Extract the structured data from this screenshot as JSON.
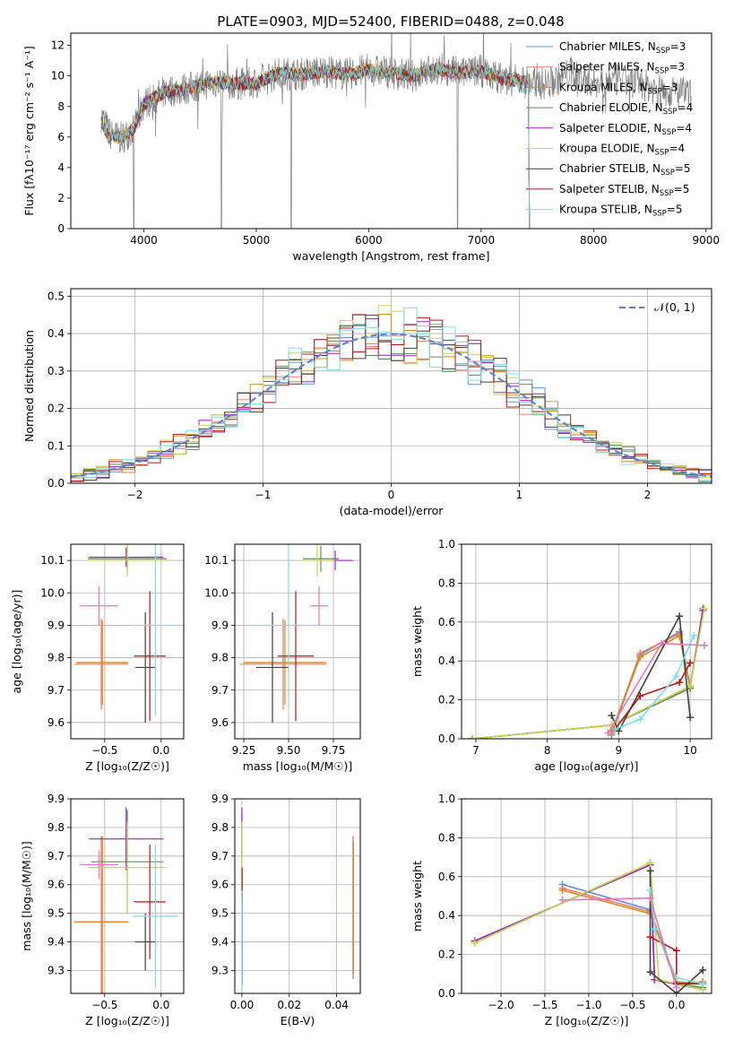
{
  "title": "PLATE=0903, MJD=52400, FIBERID=0488, z=0.048",
  "legend_entries": [
    {
      "name": "Chabrier MILES, N",
      "sub": "SSP",
      "suffix": "=3",
      "color": "#6a8fd8"
    },
    {
      "name": "Salpeter MILES, N",
      "sub": "SSP",
      "suffix": "=3",
      "color": "#e8836b"
    },
    {
      "name": "Kroupa MILES, N",
      "sub": "SSP",
      "suffix": "=3",
      "color": "#d98a1f"
    },
    {
      "name": "Chabrier ELODIE, N",
      "sub": "SSP",
      "suffix": "=4",
      "color": "#5b8f5b"
    },
    {
      "name": "Salpeter ELODIE, N",
      "sub": "SSP",
      "suffix": "=4",
      "color": "#a020c0"
    },
    {
      "name": "Kroupa ELODIE, N",
      "sub": "SSP",
      "suffix": "=4",
      "color": "#c8d84a"
    },
    {
      "name": "Chabrier STELIB, N",
      "sub": "SSP",
      "suffix": "=5",
      "color": "#404040"
    },
    {
      "name": "Salpeter STELIB, N",
      "sub": "SSP",
      "suffix": "=5",
      "color": "#b01818"
    },
    {
      "name": "Kroupa STELIB, N",
      "sub": "SSP",
      "suffix": "=5",
      "color": "#7fdde0"
    }
  ],
  "chart_data": [
    {
      "id": "spectrum",
      "type": "line",
      "xlabel": "wavelength [Angstrom, rest frame]",
      "ylabel": "Flux [fλ10⁻¹⁷ erg cm⁻² s⁻¹ A⁻¹]",
      "xlim": [
        3350,
        9050
      ],
      "ylim": [
        0,
        12.8
      ],
      "xticks": [
        4000,
        5000,
        6000,
        7000,
        8000,
        9000
      ],
      "yticks": [
        0,
        2,
        4,
        6,
        8,
        10,
        12
      ],
      "data_color": "#808080",
      "models_end": 7420,
      "shape_points": [
        [
          3620,
          7.4
        ],
        [
          3700,
          6.2
        ],
        [
          3800,
          5.9
        ],
        [
          3900,
          6.5
        ],
        [
          3960,
          7.4
        ],
        [
          4000,
          8.2
        ],
        [
          4100,
          8.6
        ],
        [
          4200,
          9.0
        ],
        [
          4400,
          9.2
        ],
        [
          4600,
          9.6
        ],
        [
          4800,
          9.5
        ],
        [
          5000,
          9.5
        ],
        [
          5200,
          10.2
        ],
        [
          5400,
          10.1
        ],
        [
          5600,
          10.3
        ],
        [
          5800,
          10.1
        ],
        [
          6000,
          10.4
        ],
        [
          6200,
          10.2
        ],
        [
          6400,
          10.0
        ],
        [
          6600,
          10.5
        ],
        [
          6800,
          10.2
        ],
        [
          7000,
          10.3
        ],
        [
          7200,
          9.8
        ],
        [
          7400,
          9.6
        ],
        [
          7600,
          9.5
        ],
        [
          7800,
          10.2
        ],
        [
          8000,
          9.6
        ],
        [
          8200,
          9.7
        ],
        [
          8400,
          9.6
        ],
        [
          8600,
          9.0
        ],
        [
          8800,
          8.9
        ],
        [
          8870,
          8.7
        ]
      ],
      "dips": [
        3910,
        4690,
        5310,
        6790
      ]
    },
    {
      "id": "residuals",
      "type": "histogram",
      "xlabel": "(data-model)/error",
      "ylabel": "Normed distribution",
      "xlim": [
        -2.5,
        2.5
      ],
      "ylim": [
        0,
        0.52
      ],
      "xticks": [
        -2,
        -1,
        0,
        1,
        2
      ],
      "yticks": [
        0.0,
        0.1,
        0.2,
        0.3,
        0.4,
        0.5
      ],
      "bin_width": 0.1,
      "gauss_label": "𝒩(0, 1)",
      "gauss_color": "#5b86d6"
    },
    {
      "id": "z_age",
      "type": "errorbar",
      "xlabel": "Z [log₁₀(Z/Z☉)]",
      "ylabel": "age  [log₁₀(age/yr)]",
      "xlim": [
        -0.8,
        0.2
      ],
      "ylim": [
        9.55,
        10.15
      ],
      "xticks": [
        -0.5,
        0.0
      ],
      "yticks": [
        9.6,
        9.7,
        9.8,
        9.9,
        10.0,
        10.1
      ],
      "points": [
        {
          "x": -0.53,
          "y": 9.785,
          "xe": 0.22,
          "ye": 0.13,
          "c": "#6a8fd8"
        },
        {
          "x": -0.53,
          "y": 9.78,
          "xe": 0.24,
          "ye": 0.14,
          "c": "#e8836b"
        },
        {
          "x": -0.52,
          "y": 9.785,
          "xe": 0.23,
          "ye": 0.13,
          "c": "#d98a1f"
        },
        {
          "x": -0.3,
          "y": 10.105,
          "xe": 0.35,
          "ye": 0.04,
          "c": "#5b8f5b"
        },
        {
          "x": -0.31,
          "y": 10.11,
          "xe": 0.33,
          "ye": 0.03,
          "c": "#a020c0"
        },
        {
          "x": -0.3,
          "y": 10.1,
          "xe": 0.34,
          "ye": 0.05,
          "c": "#c8d84a"
        },
        {
          "x": -0.14,
          "y": 9.77,
          "xe": 0.09,
          "ye": 0.17,
          "c": "#404040"
        },
        {
          "x": -0.1,
          "y": 9.805,
          "xe": 0.14,
          "ye": 0.2,
          "c": "#b01818"
        },
        {
          "x": -0.05,
          "y": 9.9,
          "xe": 0.2,
          "ye": 0.28,
          "c": "#7fdde0"
        },
        {
          "x": -0.55,
          "y": 9.96,
          "xe": 0.17,
          "ye": 0.06,
          "c": "#e377c2"
        }
      ]
    },
    {
      "id": "mass_age",
      "type": "errorbar",
      "xlabel": "mass [log₁₀(M/M☉)]",
      "ylabel": "",
      "xlim": [
        9.2,
        9.9
      ],
      "ylim": [
        9.55,
        10.15
      ],
      "xticks": [
        9.25,
        9.5,
        9.75
      ],
      "yticks": [
        9.6,
        9.7,
        9.8,
        9.9,
        10.0,
        10.1
      ],
      "points": [
        {
          "x": 9.47,
          "y": 9.785,
          "xe": 0.22,
          "ye": 0.13,
          "c": "#6a8fd8"
        },
        {
          "x": 9.47,
          "y": 9.78,
          "xe": 0.24,
          "ye": 0.14,
          "c": "#e8836b"
        },
        {
          "x": 9.48,
          "y": 9.785,
          "xe": 0.23,
          "ye": 0.13,
          "c": "#d98a1f"
        },
        {
          "x": 9.68,
          "y": 10.105,
          "xe": 0.1,
          "ye": 0.04,
          "c": "#5b8f5b"
        },
        {
          "x": 9.76,
          "y": 10.1,
          "xe": 0.1,
          "ye": 0.03,
          "c": "#a020c0"
        },
        {
          "x": 9.66,
          "y": 10.1,
          "xe": 0.1,
          "ye": 0.05,
          "c": "#c8d84a"
        },
        {
          "x": 9.41,
          "y": 9.77,
          "xe": 0.09,
          "ye": 0.17,
          "c": "#404040"
        },
        {
          "x": 9.54,
          "y": 9.805,
          "xe": 0.1,
          "ye": 0.2,
          "c": "#b01818"
        },
        {
          "x": 9.5,
          "y": 9.9,
          "xe": 0.22,
          "ye": 0.25,
          "c": "#7fdde0"
        },
        {
          "x": 9.67,
          "y": 9.96,
          "xe": 0.05,
          "ye": 0.06,
          "c": "#e377c2"
        }
      ]
    },
    {
      "id": "age_weight",
      "type": "line",
      "xlabel": "age  [log₁₀(age/yr)]",
      "ylabel": "mass weight",
      "xlim": [
        6.8,
        10.3
      ],
      "ylim": [
        0,
        1.0
      ],
      "xticks": [
        7,
        8,
        9,
        10
      ],
      "yticks": [
        0.0,
        0.2,
        0.4,
        0.6,
        0.8,
        1.0
      ],
      "series": [
        {
          "c": "#6a8fd8",
          "pts": [
            [
              8.9,
              0.02
            ],
            [
              9.3,
              0.43
            ],
            [
              9.85,
              0.55
            ],
            [
              10.0,
              0.27
            ]
          ]
        },
        {
          "c": "#e8836b",
          "pts": [
            [
              8.9,
              0.03
            ],
            [
              9.3,
              0.44
            ],
            [
              9.85,
              0.54
            ],
            [
              10.0,
              0.26
            ]
          ]
        },
        {
          "c": "#d98a1f",
          "pts": [
            [
              8.9,
              0.04
            ],
            [
              9.3,
              0.42
            ],
            [
              9.85,
              0.53
            ],
            [
              10.0,
              0.26
            ]
          ]
        },
        {
          "c": "#5b8f5b",
          "pts": [
            [
              6.95,
              0.0
            ],
            [
              8.9,
              0.07
            ],
            [
              10.0,
              0.26
            ],
            [
              10.18,
              0.67
            ]
          ]
        },
        {
          "c": "#a020c0",
          "pts": [
            [
              6.95,
              0.0
            ],
            [
              8.9,
              0.07
            ],
            [
              10.0,
              0.27
            ],
            [
              10.18,
              0.66
            ]
          ]
        },
        {
          "c": "#c8d84a",
          "pts": [
            [
              6.95,
              0.0
            ],
            [
              8.9,
              0.07
            ],
            [
              10.0,
              0.27
            ],
            [
              10.2,
              0.67
            ]
          ]
        },
        {
          "c": "#404040",
          "pts": [
            [
              8.9,
              0.12
            ],
            [
              9.0,
              0.04
            ],
            [
              9.85,
              0.63
            ],
            [
              10.0,
              0.11
            ]
          ]
        },
        {
          "c": "#b01818",
          "pts": [
            [
              8.95,
              0.05
            ],
            [
              9.3,
              0.22
            ],
            [
              9.85,
              0.29
            ],
            [
              10.0,
              0.39
            ]
          ]
        },
        {
          "c": "#7fdde0",
          "pts": [
            [
              8.95,
              0.05
            ],
            [
              9.3,
              0.1
            ],
            [
              9.8,
              0.32
            ],
            [
              10.05,
              0.53
            ]
          ]
        },
        {
          "c": "#e377c2",
          "pts": [
            [
              8.85,
              0.03
            ],
            [
              9.6,
              0.49
            ],
            [
              10.2,
              0.48
            ]
          ]
        }
      ]
    },
    {
      "id": "z_mass",
      "type": "errorbar",
      "xlabel": "Z [log₁₀(Z/Z☉)]",
      "ylabel": "mass [log₁₀(M/M☉)]",
      "xlim": [
        -0.8,
        0.2
      ],
      "ylim": [
        9.22,
        9.9
      ],
      "xticks": [
        -0.5,
        0.0
      ],
      "yticks": [
        9.3,
        9.4,
        9.5,
        9.6,
        9.7,
        9.8,
        9.9
      ],
      "points": [
        {
          "x": -0.53,
          "y": 9.47,
          "xe": 0.22,
          "ye": 0.3,
          "c": "#6a8fd8"
        },
        {
          "x": -0.53,
          "y": 9.47,
          "xe": 0.24,
          "ye": 0.3,
          "c": "#e8836b"
        },
        {
          "x": -0.52,
          "y": 9.47,
          "xe": 0.23,
          "ye": 0.3,
          "c": "#d98a1f"
        },
        {
          "x": -0.3,
          "y": 9.68,
          "xe": 0.32,
          "ye": 0.18,
          "c": "#5b8f5b"
        },
        {
          "x": -0.31,
          "y": 9.76,
          "xe": 0.33,
          "ye": 0.11,
          "c": "#a020c0"
        },
        {
          "x": -0.3,
          "y": 9.66,
          "xe": 0.34,
          "ye": 0.16,
          "c": "#c8d84a"
        },
        {
          "x": -0.14,
          "y": 9.4,
          "xe": 0.09,
          "ye": 0.1,
          "c": "#404040"
        },
        {
          "x": -0.1,
          "y": 9.54,
          "xe": 0.14,
          "ye": 0.2,
          "c": "#b01818"
        },
        {
          "x": -0.05,
          "y": 9.49,
          "xe": 0.2,
          "ye": 0.25,
          "c": "#7fdde0"
        },
        {
          "x": -0.55,
          "y": 9.67,
          "xe": 0.17,
          "ye": 0.05,
          "c": "#e377c2"
        }
      ]
    },
    {
      "id": "ebv_mass",
      "type": "errorbar",
      "xlabel": "E(B-V)",
      "ylabel": "",
      "xlim": [
        -0.003,
        0.05
      ],
      "ylim": [
        9.22,
        9.9
      ],
      "xticks": [
        0.0,
        0.02,
        0.04
      ],
      "yticks": [
        9.3,
        9.4,
        9.5,
        9.6,
        9.7,
        9.8,
        9.9
      ],
      "points": [
        {
          "x": 0.047,
          "y": 9.52,
          "xe": 0,
          "ye": 0.25,
          "c": "#6a8fd8"
        },
        {
          "x": 0.0469,
          "y": 9.52,
          "xe": 0,
          "ye": 0.24,
          "c": "#e8836b"
        },
        {
          "x": 0.0471,
          "y": 9.52,
          "xe": 0,
          "ye": 0.23,
          "c": "#d98a1f"
        },
        {
          "x": 0.0,
          "y": 9.7,
          "xe": 0,
          "ye": 0.15,
          "c": "#5b8f5b"
        },
        {
          "x": 0.0,
          "y": 9.78,
          "xe": 0,
          "ye": 0.09,
          "c": "#a020c0"
        },
        {
          "x": 0.0,
          "y": 9.7,
          "xe": 0,
          "ye": 0.12,
          "c": "#c8d84a"
        },
        {
          "x": 0.0001,
          "y": 9.4,
          "xe": 0,
          "ye": 0.15,
          "c": "#404040"
        },
        {
          "x": 0.0001,
          "y": 9.6,
          "xe": 0,
          "ye": 0.06,
          "c": "#b01818"
        },
        {
          "x": 0.0,
          "y": 9.4,
          "xe": 0,
          "ye": 0.18,
          "c": "#7fdde0"
        }
      ]
    },
    {
      "id": "z_weight",
      "type": "line",
      "xlabel": "Z [log₁₀(Z/Z☉)]",
      "ylabel": "mass weight",
      "xlim": [
        -2.45,
        0.4
      ],
      "ylim": [
        0,
        1.0
      ],
      "xticks": [
        -2.0,
        -1.5,
        -1.0,
        -0.5,
        0.0
      ],
      "yticks": [
        0.0,
        0.2,
        0.4,
        0.6,
        0.8,
        1.0
      ],
      "series": [
        {
          "c": "#6a8fd8",
          "pts": [
            [
              -1.3,
              0.56
            ],
            [
              -0.3,
              0.43
            ],
            [
              0.0,
              0.05
            ],
            [
              0.3,
              0.05
            ]
          ]
        },
        {
          "c": "#e8836b",
          "pts": [
            [
              -1.3,
              0.54
            ],
            [
              -0.3,
              0.42
            ],
            [
              0.0,
              0.06
            ],
            [
              0.3,
              0.05
            ]
          ]
        },
        {
          "c": "#d98a1f",
          "pts": [
            [
              -1.3,
              0.53
            ],
            [
              -0.3,
              0.41
            ],
            [
              0.0,
              0.05
            ],
            [
              0.3,
              0.06
            ]
          ]
        },
        {
          "c": "#5b8f5b",
          "pts": [
            [
              -2.3,
              0.26
            ],
            [
              -0.3,
              0.67
            ],
            [
              -0.25,
              0.07
            ],
            [
              0.3,
              0.03
            ]
          ]
        },
        {
          "c": "#a020c0",
          "pts": [
            [
              -2.3,
              0.27
            ],
            [
              -0.3,
              0.66
            ],
            [
              -0.25,
              0.07
            ],
            [
              0.3,
              0.02
            ]
          ]
        },
        {
          "c": "#c8d84a",
          "pts": [
            [
              -2.3,
              0.26
            ],
            [
              -0.3,
              0.67
            ],
            [
              -0.2,
              0.07
            ],
            [
              0.3,
              0.02
            ]
          ]
        },
        {
          "c": "#404040",
          "pts": [
            [
              -0.3,
              0.63
            ],
            [
              -0.3,
              0.11
            ],
            [
              0.0,
              0.0
            ],
            [
              0.3,
              0.12
            ]
          ]
        },
        {
          "c": "#b01818",
          "pts": [
            [
              -0.3,
              0.29
            ],
            [
              0.0,
              0.22
            ],
            [
              0.0,
              0.05
            ],
            [
              0.3,
              0.05
            ]
          ]
        },
        {
          "c": "#7fdde0",
          "pts": [
            [
              -0.3,
              0.53
            ],
            [
              -0.25,
              0.33
            ],
            [
              0.0,
              0.08
            ],
            [
              0.3,
              0.05
            ]
          ]
        },
        {
          "c": "#e377c2",
          "pts": [
            [
              -1.3,
              0.48
            ],
            [
              -0.3,
              0.49
            ],
            [
              0.0,
              0.03
            ]
          ]
        }
      ]
    }
  ]
}
